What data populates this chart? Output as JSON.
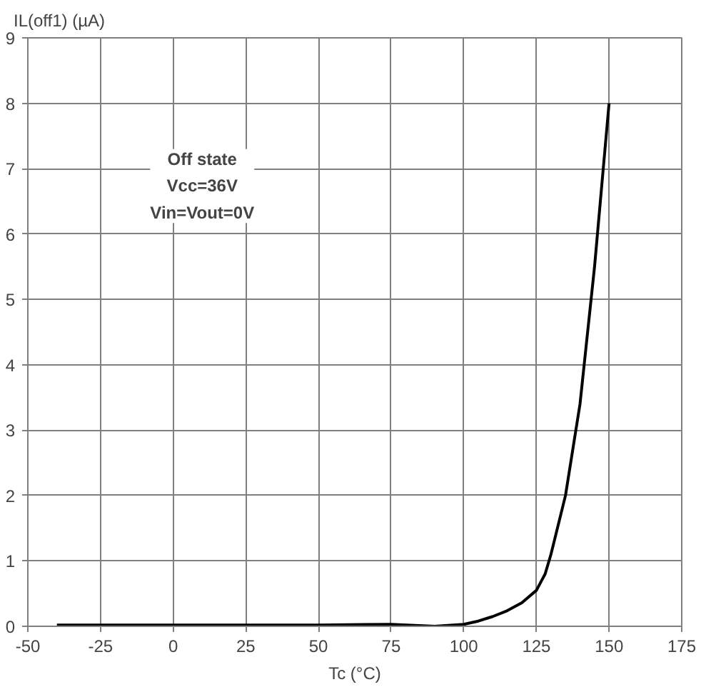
{
  "chart_data": {
    "type": "line",
    "ylabel": "IL(off1) (µA)",
    "xlabel": "Tc (°C)",
    "annotations": [
      "Off state\nVcc=36V\nVin=Vout=0V"
    ],
    "x": [
      -40,
      0,
      50,
      75,
      90,
      100,
      105,
      110,
      115,
      120,
      125,
      128,
      130,
      135,
      140,
      145,
      150
    ],
    "series": [
      {
        "color": "#000000",
        "values": [
          0.02,
          0.02,
          0.02,
          0.03,
          0.0,
          0.03,
          0.08,
          0.15,
          0.24,
          0.36,
          0.55,
          0.8,
          1.1,
          2.0,
          3.4,
          5.5,
          8.0
        ]
      }
    ],
    "xlim": [
      -50,
      175
    ],
    "xticks": [
      -50,
      -25,
      0,
      25,
      50,
      75,
      100,
      125,
      150,
      175
    ],
    "ylim": [
      0,
      9
    ],
    "yticks": [
      0,
      1,
      2,
      3,
      4,
      5,
      6,
      7,
      8,
      9
    ],
    "grid": true,
    "marker": "none",
    "line_style": "solid"
  }
}
